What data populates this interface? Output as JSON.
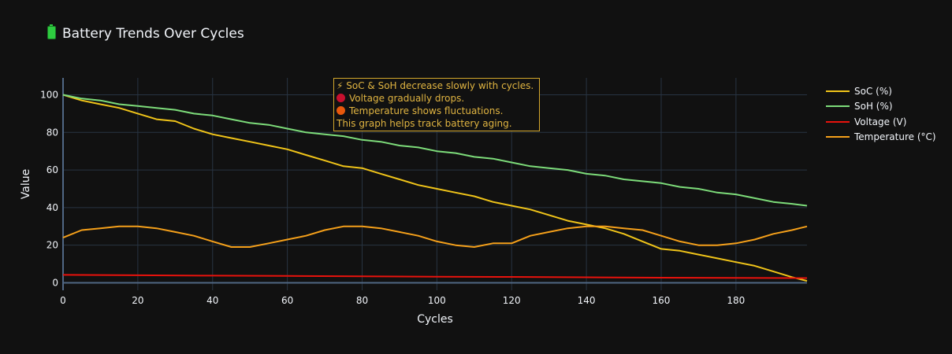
{
  "page_title": "Battery Trends Over Cycles",
  "chart_data": {
    "type": "line",
    "title": "Battery Trends Over Cycles",
    "xlabel": "Cycles",
    "ylabel": "Value",
    "xlim": [
      0,
      199
    ],
    "ylim": [
      -4,
      109
    ],
    "xticks": [
      0,
      20,
      40,
      60,
      80,
      100,
      120,
      140,
      160,
      180
    ],
    "yticks": [
      0,
      20,
      40,
      60,
      80,
      100
    ],
    "grid": true,
    "legend_position": "right",
    "background": "#111111",
    "grid_color": "#283442",
    "series": [
      {
        "name": "SoC (%)",
        "color": "#f0c419",
        "points": [
          [
            0,
            100
          ],
          [
            5,
            97
          ],
          [
            10,
            95
          ],
          [
            15,
            93
          ],
          [
            20,
            90
          ],
          [
            25,
            87
          ],
          [
            30,
            86
          ],
          [
            35,
            82
          ],
          [
            40,
            79
          ],
          [
            45,
            77
          ],
          [
            50,
            75
          ],
          [
            55,
            73
          ],
          [
            60,
            71
          ],
          [
            65,
            68
          ],
          [
            70,
            65
          ],
          [
            75,
            62
          ],
          [
            80,
            61
          ],
          [
            85,
            58
          ],
          [
            90,
            55
          ],
          [
            95,
            52
          ],
          [
            100,
            50
          ],
          [
            105,
            48
          ],
          [
            110,
            46
          ],
          [
            115,
            43
          ],
          [
            120,
            41
          ],
          [
            125,
            39
          ],
          [
            130,
            36
          ],
          [
            135,
            33
          ],
          [
            140,
            31
          ],
          [
            145,
            29
          ],
          [
            150,
            26
          ],
          [
            155,
            22
          ],
          [
            160,
            18
          ],
          [
            165,
            17
          ],
          [
            170,
            15
          ],
          [
            175,
            13
          ],
          [
            180,
            11
          ],
          [
            185,
            9
          ],
          [
            190,
            6
          ],
          [
            195,
            3
          ],
          [
            199,
            1
          ]
        ]
      },
      {
        "name": "SoH (%)",
        "color": "#7ddc7a",
        "points": [
          [
            0,
            100
          ],
          [
            5,
            98
          ],
          [
            10,
            97
          ],
          [
            15,
            95
          ],
          [
            20,
            94
          ],
          [
            25,
            93
          ],
          [
            30,
            92
          ],
          [
            35,
            90
          ],
          [
            40,
            89
          ],
          [
            45,
            87
          ],
          [
            50,
            85
          ],
          [
            55,
            84
          ],
          [
            60,
            82
          ],
          [
            65,
            80
          ],
          [
            70,
            79
          ],
          [
            75,
            78
          ],
          [
            80,
            76
          ],
          [
            85,
            75
          ],
          [
            90,
            73
          ],
          [
            95,
            72
          ],
          [
            100,
            70
          ],
          [
            105,
            69
          ],
          [
            110,
            67
          ],
          [
            115,
            66
          ],
          [
            120,
            64
          ],
          [
            125,
            62
          ],
          [
            130,
            61
          ],
          [
            135,
            60
          ],
          [
            140,
            58
          ],
          [
            145,
            57
          ],
          [
            150,
            55
          ],
          [
            155,
            54
          ],
          [
            160,
            53
          ],
          [
            165,
            51
          ],
          [
            170,
            50
          ],
          [
            175,
            48
          ],
          [
            180,
            47
          ],
          [
            185,
            45
          ],
          [
            190,
            43
          ],
          [
            195,
            42
          ],
          [
            199,
            41
          ]
        ]
      },
      {
        "name": "Voltage (V)",
        "color": "#e8120c",
        "points": [
          [
            0,
            4.2
          ],
          [
            20,
            4.0
          ],
          [
            40,
            3.8
          ],
          [
            60,
            3.6
          ],
          [
            80,
            3.4
          ],
          [
            100,
            3.2
          ],
          [
            120,
            3.1
          ],
          [
            140,
            2.9
          ],
          [
            160,
            2.7
          ],
          [
            180,
            2.6
          ],
          [
            199,
            2.5
          ]
        ]
      },
      {
        "name": "Temperature (°C)",
        "color": "#f5a01a",
        "points": [
          [
            0,
            24
          ],
          [
            5,
            28
          ],
          [
            10,
            29
          ],
          [
            15,
            30
          ],
          [
            20,
            30
          ],
          [
            25,
            29
          ],
          [
            30,
            27
          ],
          [
            35,
            25
          ],
          [
            40,
            22
          ],
          [
            45,
            19
          ],
          [
            50,
            19
          ],
          [
            55,
            21
          ],
          [
            60,
            23
          ],
          [
            65,
            25
          ],
          [
            70,
            28
          ],
          [
            75,
            30
          ],
          [
            80,
            30
          ],
          [
            85,
            29
          ],
          [
            90,
            27
          ],
          [
            95,
            25
          ],
          [
            100,
            22
          ],
          [
            105,
            20
          ],
          [
            110,
            19
          ],
          [
            115,
            21
          ],
          [
            120,
            21
          ],
          [
            125,
            25
          ],
          [
            130,
            27
          ],
          [
            135,
            29
          ],
          [
            140,
            30
          ],
          [
            145,
            30
          ],
          [
            150,
            29
          ],
          [
            155,
            28
          ],
          [
            160,
            25
          ],
          [
            165,
            22
          ],
          [
            170,
            20
          ],
          [
            175,
            20
          ],
          [
            180,
            21
          ],
          [
            185,
            23
          ],
          [
            190,
            26
          ],
          [
            195,
            28
          ],
          [
            199,
            30
          ]
        ]
      }
    ],
    "annotations": [
      {
        "icon": "lightning",
        "text": "SoC & SoH decrease slowly with cycles."
      },
      {
        "icon": "red-circle",
        "text": "Voltage gradually drops."
      },
      {
        "icon": "orange-circle",
        "text": "Temperature shows fluctuations."
      },
      {
        "icon": "",
        "text": "This graph helps track battery aging."
      }
    ]
  }
}
